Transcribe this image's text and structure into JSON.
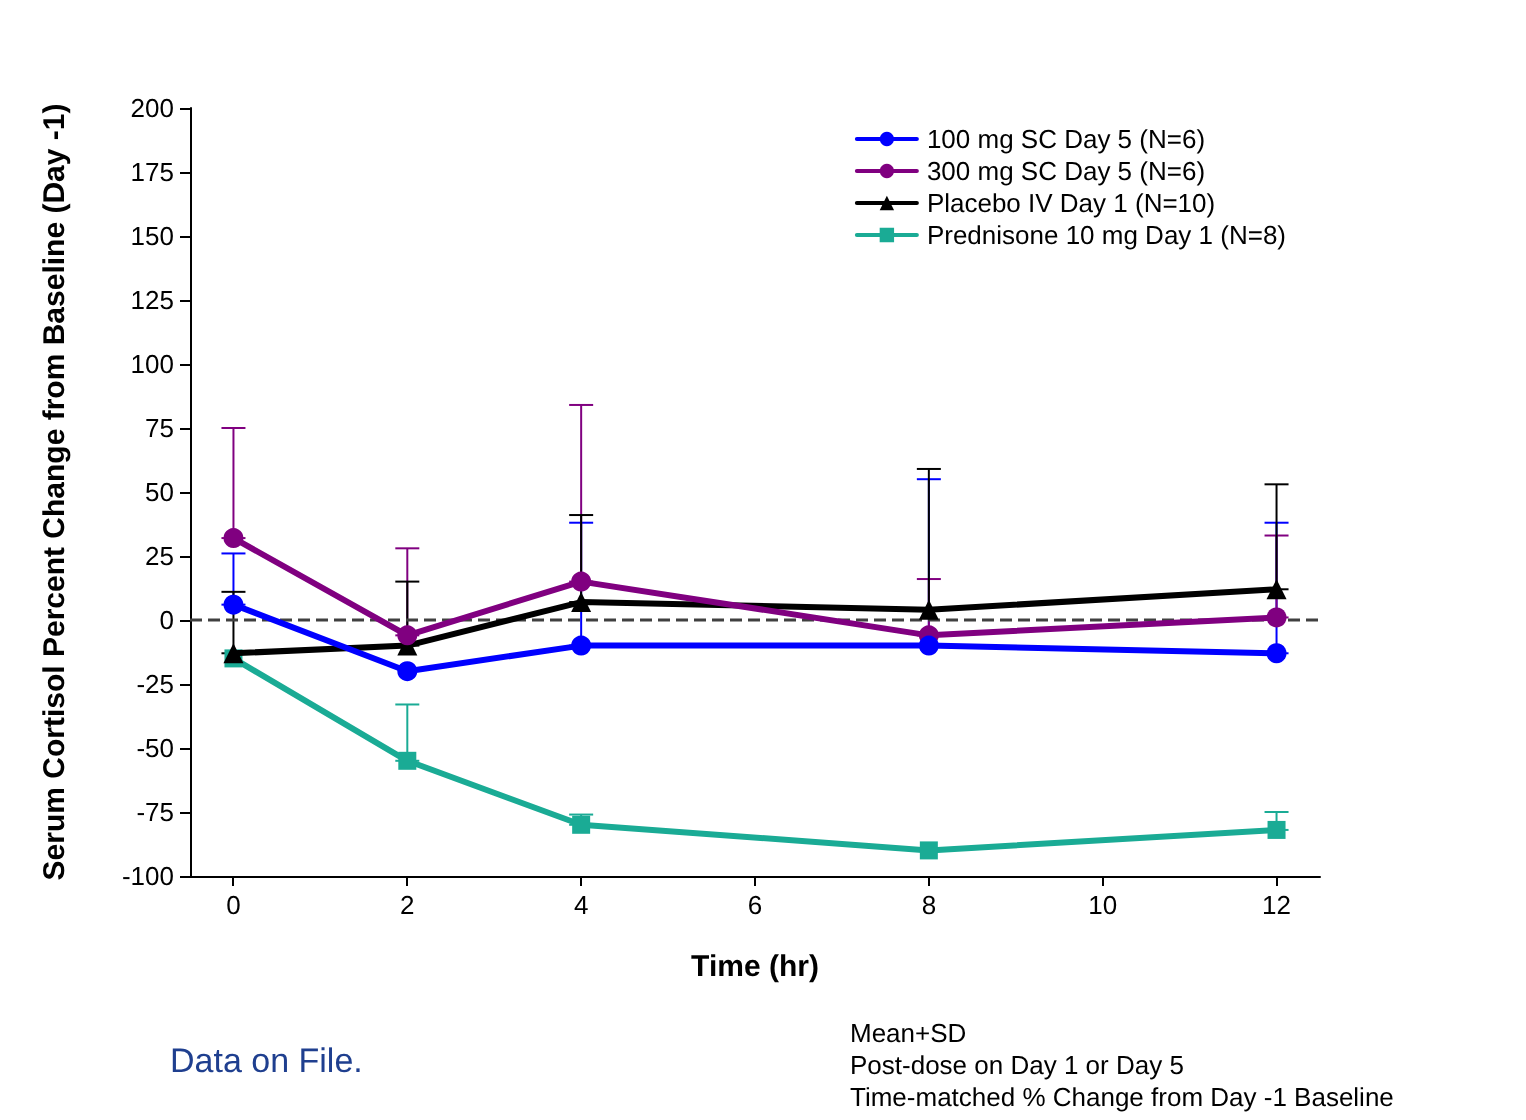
{
  "chart_data": {
    "type": "line",
    "xlabel": "Time (hr)",
    "ylabel": "Serum Cortisol Percent Change from Baseline (Day -1)",
    "x": [
      0,
      2,
      4,
      8,
      12
    ],
    "xlim": [
      -0.5,
      12.5
    ],
    "xticks": [
      0,
      2,
      4,
      6,
      8,
      10,
      12
    ],
    "ylim": [
      -100,
      200
    ],
    "yticks": [
      -100,
      -75,
      -50,
      -25,
      0,
      25,
      50,
      75,
      100,
      125,
      150,
      175,
      200
    ],
    "grid": false,
    "legend": "top right",
    "series": [
      {
        "name": "100 mg SC Day 5 (N=6)",
        "color": "#0000ff",
        "marker": "circle",
        "values": [
          6,
          -20,
          -10,
          -10,
          -13
        ],
        "errors": [
          [
            6,
            26
          ],
          null,
          [
            -10,
            38
          ],
          [
            -10,
            55
          ],
          [
            -13,
            38
          ]
        ]
      },
      {
        "name": "300 mg SC Day 5 (N=6)",
        "color": "#800080",
        "marker": "circle",
        "values": [
          32,
          -6,
          15,
          -6,
          1
        ],
        "errors": [
          [
            32,
            75
          ],
          [
            -6,
            28
          ],
          [
            15,
            84
          ],
          [
            -6,
            16
          ],
          [
            1,
            33
          ]
        ]
      },
      {
        "name": "Placebo IV Day 1 (N=10)",
        "color": "#000000",
        "marker": "triangle",
        "values": [
          -13,
          -10,
          7,
          4,
          12
        ],
        "errors": [
          [
            -13,
            11
          ],
          [
            -10,
            15
          ],
          [
            7,
            41
          ],
          [
            4,
            59
          ],
          [
            12,
            53
          ]
        ]
      },
      {
        "name": "Prednisone 10 mg Day 1 (N=8)",
        "color": "#1aab95",
        "marker": "square",
        "values": [
          -15,
          -55,
          -80,
          -90,
          -82
        ],
        "errors": [
          null,
          [
            -55,
            -33
          ],
          [
            -80,
            -76
          ],
          null,
          [
            -82,
            -75
          ]
        ]
      }
    ],
    "ref_lines": [
      {
        "axis": "y",
        "value": 0,
        "color": "#404040",
        "line_style": "dashed"
      }
    ],
    "annotations": [
      "Data on File.",
      "Mean+SD",
      "Post-dose on Day 1 or Day 5",
      "Time-matched % Change from Day -1 Baseline"
    ]
  }
}
